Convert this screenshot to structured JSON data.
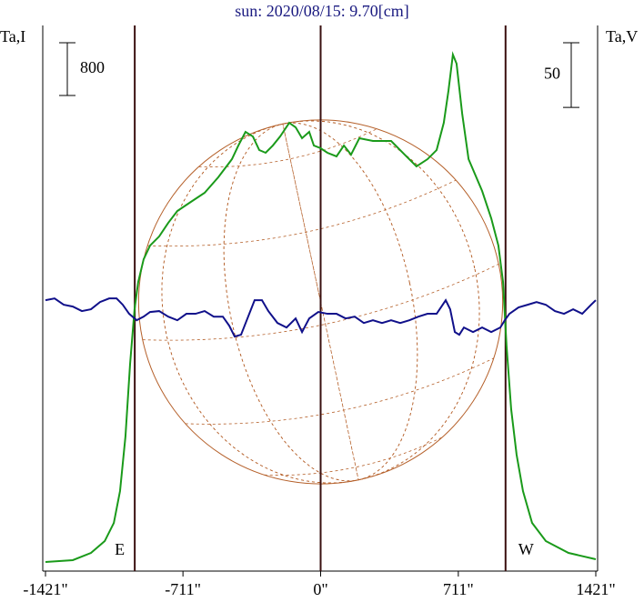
{
  "chart_data": {
    "type": "line",
    "title": "sun: 2020/08/15: 9.70[cm]",
    "ylabel": "Ta,I",
    "y2label": "Ta,V",
    "xlim": [
      -1421,
      1421
    ],
    "xticks": [
      {
        "value": -1421,
        "label": "-1421\""
      },
      {
        "value": -711,
        "label": "-711\""
      },
      {
        "value": 0,
        "label": "0\""
      },
      {
        "value": 711,
        "label": "711\""
      },
      {
        "value": 1421,
        "label": "1421\""
      }
    ],
    "ylim": [
      0,
      8280
    ],
    "y2lim": [
      -206,
      216
    ],
    "scale_bars": [
      {
        "label": "800",
        "value": 800
      },
      {
        "label": "50",
        "value": 50,
        "axis": "y2"
      }
    ],
    "vlines": [
      -960,
      0,
      955
    ],
    "limb_labels": [
      "E",
      "W"
    ],
    "disk_radius": 940,
    "series": [
      {
        "name": "Ta,I",
        "color": "#1a9a1a",
        "x": [
          -1421,
          -1280,
          -1186,
          -1115,
          -1068,
          -1036,
          -1008,
          -984,
          -961,
          -942,
          -914,
          -881,
          -834,
          -787,
          -740,
          -670,
          -599,
          -529,
          -458,
          -425,
          -388,
          -350,
          -317,
          -284,
          -247,
          -209,
          -162,
          -129,
          -96,
          -59,
          -35,
          0,
          35,
          82,
          120,
          157,
          200,
          270,
          364,
          434,
          495,
          552,
          599,
          636,
          660,
          683,
          702,
          731,
          764,
          834,
          881,
          918,
          942,
          960,
          984,
          1012,
          1045,
          1092,
          1163,
          1280,
          1421
        ],
        "values": [
          138,
          166,
          276,
          455,
          731,
          1214,
          2042,
          3146,
          3974,
          4388,
          4733,
          4940,
          5078,
          5285,
          5465,
          5603,
          5741,
          5975,
          6251,
          6458,
          6665,
          6596,
          6389,
          6348,
          6458,
          6596,
          6803,
          6734,
          6569,
          6665,
          6458,
          6417,
          6348,
          6293,
          6458,
          6320,
          6569,
          6527,
          6527,
          6320,
          6141,
          6251,
          6389,
          6803,
          7286,
          7838,
          7700,
          6941,
          6251,
          5768,
          5354,
          4940,
          4388,
          3422,
          2456,
          1766,
          1214,
          731,
          455,
          276,
          179
        ]
      },
      {
        "name": "Ta,V",
        "color": "#10108a",
        "axis": "y2",
        "x": [
          -1421,
          -1374,
          -1327,
          -1280,
          -1233,
          -1186,
          -1139,
          -1092,
          -1054,
          -1022,
          -989,
          -950,
          -914,
          -881,
          -834,
          -787,
          -740,
          -693,
          -646,
          -599,
          -552,
          -505,
          -472,
          -444,
          -411,
          -378,
          -341,
          -303,
          -270,
          -223,
          -176,
          -129,
          -96,
          -59,
          -12,
          35,
          82,
          129,
          176,
          223,
          270,
          317,
          364,
          411,
          458,
          505,
          552,
          599,
          646,
          669,
          693,
          716,
          740,
          787,
          834,
          881,
          928,
          951,
          975,
          1022,
          1069,
          1115,
          1163,
          1210,
          1257,
          1304,
          1351,
          1397,
          1421
        ],
        "values": [
          3.5,
          4.9,
          0,
          -1.4,
          -4.9,
          -3.5,
          2.1,
          4.9,
          4.9,
          0,
          -7,
          -12,
          -9.2,
          -5.6,
          -4.9,
          -9.2,
          -12,
          -7,
          -7,
          -4.9,
          -9.2,
          -9.2,
          -16.2,
          -24.6,
          -23.2,
          -10.6,
          3.5,
          3.5,
          -4.9,
          -14.1,
          -17.6,
          -10.6,
          -21.1,
          -10.6,
          -5.6,
          -7,
          -7,
          -10.6,
          -9.2,
          -14.1,
          -12,
          -14.1,
          -12,
          -14.1,
          -12,
          -9.2,
          -7,
          -7,
          3.5,
          -3.5,
          -21.1,
          -23.2,
          -17.6,
          -21.1,
          -17.6,
          -21.1,
          -17.6,
          -12,
          -7,
          -2.1,
          0,
          2.1,
          0,
          -4.9,
          -7,
          -3.5,
          -7,
          0,
          3.5
        ]
      }
    ]
  }
}
